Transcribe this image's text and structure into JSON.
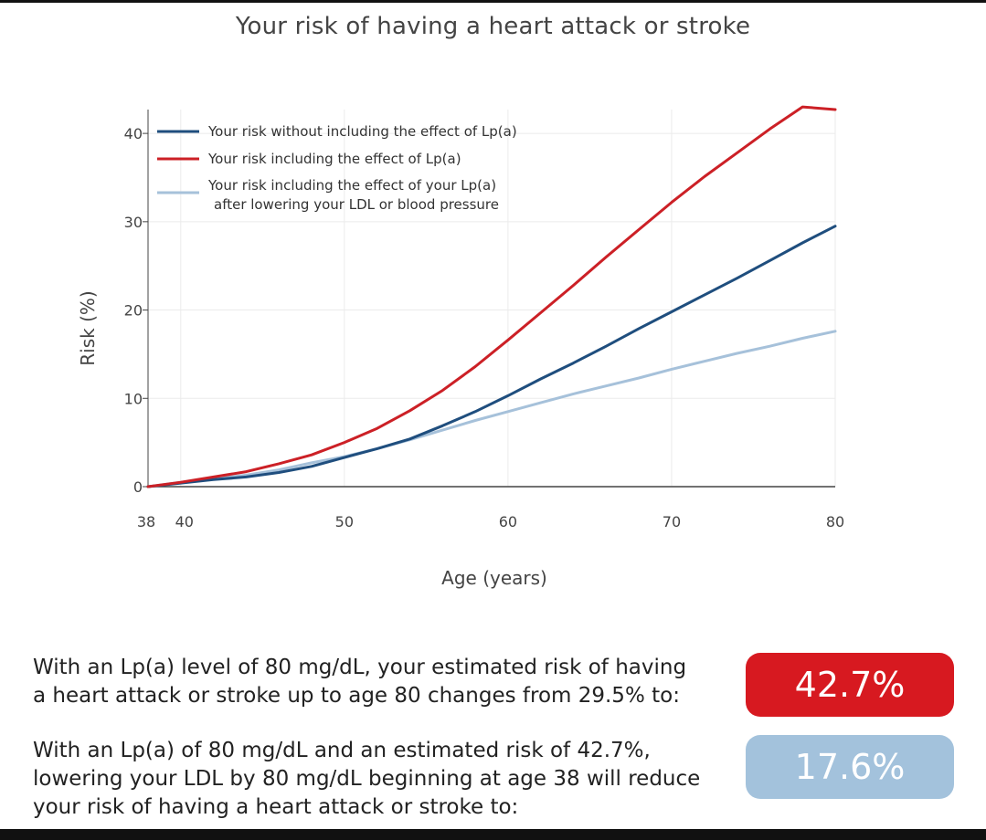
{
  "title": "Your risk of having a heart attack or stroke",
  "colors": {
    "without_lpa": "#1f4e7e",
    "with_lpa": "#cc2026",
    "lowered": "#a6c1da",
    "badge_with_lpa": "#d71920",
    "badge_lowered": "#a3c2dc"
  },
  "chart_data": {
    "type": "line",
    "title": "Your risk of having a heart attack or stroke",
    "xlabel": "Age (years)",
    "ylabel": "Risk (%)",
    "xlim": [
      38,
      80
    ],
    "ylim": [
      0,
      42.7
    ],
    "xticks": [
      38,
      40,
      50,
      60,
      70,
      80
    ],
    "yticks": [
      0,
      10,
      20,
      30,
      40
    ],
    "grid": true,
    "legend_position": "top-left",
    "series": [
      {
        "name": "Your risk without including the effect of Lp(a)",
        "color": "#1f4e7e",
        "x": [
          38,
          40,
          42,
          44,
          46,
          48,
          50,
          52,
          54,
          56,
          58,
          60,
          62,
          64,
          66,
          68,
          70,
          72,
          74,
          76,
          78,
          80
        ],
        "y": [
          0,
          0.4,
          0.8,
          1.1,
          1.6,
          2.3,
          3.3,
          4.3,
          5.4,
          6.9,
          8.5,
          10.3,
          12.2,
          14.0,
          15.9,
          17.9,
          19.8,
          21.7,
          23.6,
          25.6,
          27.6,
          29.5
        ]
      },
      {
        "name": "Your risk including the effect of Lp(a)",
        "color": "#cc2026",
        "x": [
          38,
          40,
          42,
          44,
          46,
          48,
          50,
          52,
          54,
          56,
          58,
          60,
          62,
          64,
          66,
          68,
          70,
          72,
          74,
          76,
          78,
          80
        ],
        "y": [
          0,
          0.5,
          1.1,
          1.7,
          2.6,
          3.6,
          5.0,
          6.6,
          8.6,
          10.9,
          13.6,
          16.6,
          19.7,
          22.8,
          26.0,
          29.1,
          32.2,
          35.1,
          37.8,
          40.5,
          43.0,
          42.7
        ]
      },
      {
        "name": "Your risk including the effect of your Lp(a) after lowering your LDL or blood pressure",
        "label_lines": [
          "Your risk including the effect of your Lp(a)",
          "after lowering your LDL or blood pressure"
        ],
        "color": "#a6c1da",
        "x": [
          38,
          40,
          42,
          44,
          46,
          48,
          50,
          52,
          54,
          56,
          58,
          60,
          62,
          64,
          66,
          68,
          70,
          72,
          74,
          76,
          78,
          80
        ],
        "y": [
          0,
          0.5,
          0.9,
          1.3,
          1.9,
          2.7,
          3.4,
          4.3,
          5.3,
          6.4,
          7.5,
          8.5,
          9.5,
          10.5,
          11.4,
          12.3,
          13.3,
          14.2,
          15.1,
          15.9,
          16.8,
          17.6
        ]
      }
    ]
  },
  "summary": {
    "text1": "With an Lp(a) level of 80 mg/dL, your estimated risk of having a heart attack or stroke up to age 80 changes from 29.5% to:",
    "value1": "42.7%",
    "text2": "With an Lp(a) of 80 mg/dL and an estimated risk of 42.7%, lowering your LDL by 80 mg/dL beginning at age 38 will reduce your risk of having a heart attack or stroke to:",
    "value2": "17.6%"
  }
}
